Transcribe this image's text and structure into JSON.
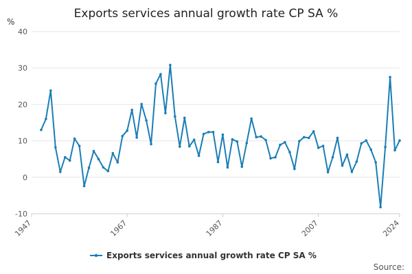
{
  "chart_data": {
    "type": "line",
    "title": "Exports services annual growth rate CP SA %",
    "ylabel": "%",
    "xlim": [
      1947,
      2024
    ],
    "ylim": [
      -10,
      40
    ],
    "yticks": [
      -10,
      0,
      10,
      20,
      30,
      40
    ],
    "xticks": [
      1947,
      1967,
      1987,
      2007,
      2024
    ],
    "grid": true,
    "legend": "bottom",
    "color": "#1a7db5",
    "series": [
      {
        "name": "Exports services annual growth rate CP SA %",
        "x": [
          1949,
          1950,
          1951,
          1952,
          1953,
          1954,
          1955,
          1956,
          1957,
          1958,
          1959,
          1960,
          1961,
          1962,
          1963,
          1964,
          1965,
          1966,
          1967,
          1968,
          1969,
          1970,
          1971,
          1972,
          1973,
          1974,
          1975,
          1976,
          1977,
          1978,
          1979,
          1980,
          1981,
          1982,
          1983,
          1984,
          1985,
          1986,
          1987,
          1988,
          1989,
          1990,
          1991,
          1992,
          1993,
          1994,
          1995,
          1996,
          1997,
          1998,
          1999,
          2000,
          2001,
          2002,
          2003,
          2004,
          2005,
          2006,
          2007,
          2008,
          2009,
          2010,
          2011,
          2012,
          2013,
          2014,
          2015,
          2016,
          2017,
          2018,
          2019,
          2020,
          2021,
          2022,
          2023,
          2024
        ],
        "y": [
          13,
          16,
          23.8,
          8.2,
          1.5,
          5.5,
          4.6,
          10.6,
          8.6,
          -2.4,
          2.6,
          7.2,
          5.0,
          2.7,
          1.7,
          6.6,
          4.1,
          11.3,
          12.8,
          18.5,
          10.9,
          20.1,
          15.6,
          9.1,
          25.7,
          28.3,
          17.6,
          30.8,
          16.7,
          8.4,
          16.3,
          8.5,
          10.3,
          5.9,
          11.9,
          12.4,
          12.4,
          4.2,
          11.7,
          2.7,
          10.4,
          9.8,
          2.9,
          9.4,
          16.1,
          11.0,
          11.2,
          10.2,
          5.2,
          5.5,
          8.9,
          9.6,
          6.9,
          2.3,
          9.9,
          11.0,
          10.8,
          12.6,
          8.1,
          8.6,
          1.4,
          5.5,
          10.8,
          3.2,
          6.2,
          1.5,
          4.3,
          9.3,
          10.1,
          7.6,
          4.1,
          -8.2,
          8.3,
          27.5,
          7.4,
          10.1
        ]
      }
    ]
  },
  "source_label": "Source:"
}
